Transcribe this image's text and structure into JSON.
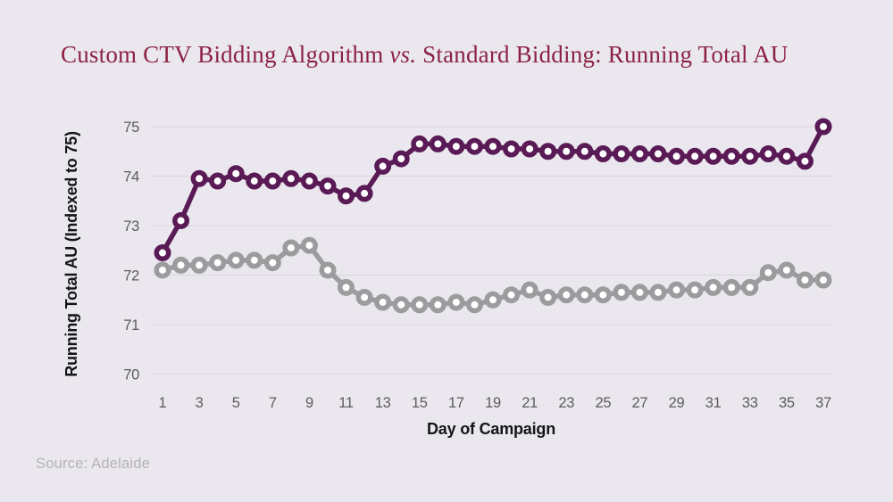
{
  "page": {
    "background_color": "#eae8ee"
  },
  "title": {
    "part1": "Custom CTV Bidding Algorithm ",
    "vs": "vs.",
    "part2": " Standard Bidding: Running Total AU",
    "color": "#8c2143"
  },
  "source": {
    "label": "Source: Adelaide"
  },
  "chart_data": {
    "type": "line",
    "title": "Custom CTV Bidding Algorithm vs. Standard Bidding: Running Total AU",
    "xlabel": "Day of Campaign",
    "ylabel": "Running Total AU (Indexed to 75)",
    "xlim": [
      1,
      37
    ],
    "ylim": [
      70,
      75
    ],
    "x_ticks": [
      1,
      3,
      5,
      7,
      9,
      11,
      13,
      15,
      17,
      19,
      21,
      23,
      25,
      27,
      29,
      31,
      33,
      35,
      37
    ],
    "y_ticks": [
      70,
      71,
      72,
      73,
      74,
      75
    ],
    "grid": "horizontal-only",
    "legend": "none",
    "marker_style": "open-circle",
    "x": [
      1,
      2,
      3,
      4,
      5,
      6,
      7,
      8,
      9,
      10,
      11,
      12,
      13,
      14,
      15,
      16,
      17,
      18,
      19,
      20,
      21,
      22,
      23,
      24,
      25,
      26,
      27,
      28,
      29,
      30,
      31,
      32,
      33,
      34,
      35,
      36,
      37
    ],
    "series": [
      {
        "name": "Custom CTV Bidding Algorithm",
        "color": "#5a1a55",
        "values": [
          72.45,
          73.1,
          73.95,
          73.9,
          74.05,
          73.9,
          73.9,
          73.95,
          73.9,
          73.8,
          73.6,
          73.65,
          74.2,
          74.35,
          74.65,
          74.65,
          74.6,
          74.6,
          74.6,
          74.55,
          74.55,
          74.5,
          74.5,
          74.5,
          74.45,
          74.45,
          74.45,
          74.45,
          74.4,
          74.4,
          74.4,
          74.4,
          74.4,
          74.45,
          74.4,
          74.3,
          75.0
        ]
      },
      {
        "name": "Standard Bidding",
        "color": "#9c9b9d",
        "values": [
          72.1,
          72.2,
          72.2,
          72.25,
          72.3,
          72.3,
          72.25,
          72.55,
          72.6,
          72.1,
          71.75,
          71.55,
          71.45,
          71.4,
          71.4,
          71.4,
          71.45,
          71.4,
          71.5,
          71.6,
          71.7,
          71.55,
          71.6,
          71.6,
          71.6,
          71.65,
          71.65,
          71.65,
          71.7,
          71.7,
          71.75,
          71.75,
          71.75,
          72.05,
          72.1,
          71.9,
          71.9
        ]
      }
    ]
  }
}
